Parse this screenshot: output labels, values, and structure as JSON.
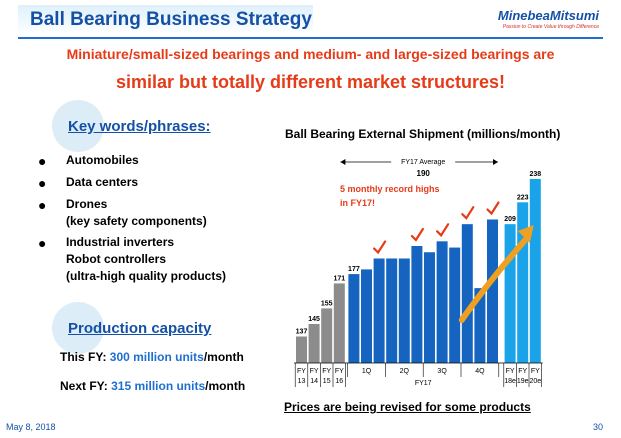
{
  "header": {
    "title": "Ball Bearing Business Strategy",
    "logo": "MinebeaMitsumi",
    "tagline": "Passion to Create Value through Difference"
  },
  "subtitle": {
    "line1": "Miniature/small-sized bearings and medium- and large-sized bearings are",
    "line2": "similar but totally different market structures!"
  },
  "keywords": {
    "heading": "Key words/phrases:",
    "items": [
      {
        "lines": [
          "Automobiles"
        ]
      },
      {
        "lines": [
          "Data centers"
        ]
      },
      {
        "lines": [
          "Drones",
          "(key safety components)"
        ]
      },
      {
        "lines": [
          "Industrial inverters",
          "Robot controllers",
          "(ultra-high quality products)"
        ]
      }
    ]
  },
  "production": {
    "heading": "Production capacity",
    "this_fy_label": "This FY: ",
    "this_fy_value": "300 million units",
    "this_fy_unit": "/month",
    "next_fy_label": "Next FY: ",
    "next_fy_value": "315 million units",
    "next_fy_unit": "/month"
  },
  "footer": {
    "date": "May 8, 2018",
    "page": "30",
    "note": "Prices are being revised for some products"
  },
  "colors": {
    "title_blue": "#1451a6",
    "accent_red": "#e63b19",
    "bar_gray": "#8c8c8c",
    "bar_blue": "#1565c0",
    "bar_light_blue": "#1aa3e8",
    "arrow_orange": "#f0a020"
  },
  "chart_data": {
    "type": "bar",
    "title": "Ball Bearing External Shipment (millions/month)",
    "annual": {
      "categories": [
        [
          "FY",
          "13"
        ],
        [
          "FY",
          "14"
        ],
        [
          "FY",
          "15"
        ],
        [
          "FY",
          "16"
        ]
      ],
      "values": [
        137,
        145,
        155,
        171
      ],
      "labels": [
        "137",
        "145",
        "155",
        "171"
      ]
    },
    "monthly": {
      "values": [
        177,
        180,
        187,
        187,
        187,
        195,
        191,
        198,
        194,
        209,
        168,
        212
      ],
      "labels": [
        "177",
        "",
        "",
        "",
        "",
        "",
        "",
        "",
        "",
        "",
        "",
        ""
      ],
      "quarters": [
        "1Q",
        "2Q",
        "3Q",
        "4Q"
      ],
      "group_label": "FY17",
      "record_highs": [
        2,
        5,
        7,
        9,
        11
      ]
    },
    "estimates": {
      "categories": [
        [
          "FY",
          "18e"
        ],
        [
          "FY",
          "19e"
        ],
        [
          "FY",
          "20e"
        ]
      ],
      "values": [
        209,
        223,
        238
      ],
      "labels": [
        "209",
        "223",
        "238"
      ]
    },
    "average": {
      "label": "FY17 Average",
      "value": "190"
    },
    "annotation": [
      "5 monthly record highs",
      "in FY17!"
    ],
    "ylim": [
      120,
      245
    ]
  }
}
